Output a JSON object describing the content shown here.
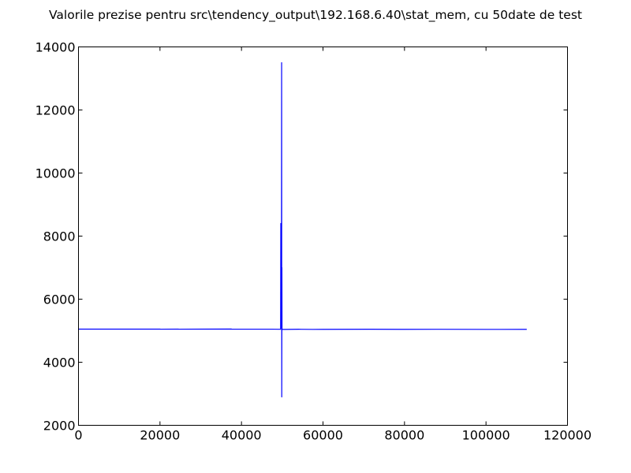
{
  "chart_data": {
    "type": "line",
    "title": "Valorile prezise pentru src\\tendency_output\\192.168.6.40\\stat_mem, cu 50date de test",
    "xlabel": "",
    "ylabel": "",
    "xlim": [
      0,
      120000
    ],
    "ylim": [
      2000,
      14000
    ],
    "x_ticks": [
      0,
      20000,
      40000,
      60000,
      80000,
      100000,
      120000
    ],
    "y_ticks": [
      2000,
      4000,
      6000,
      8000,
      10000,
      12000,
      14000
    ],
    "grid": false,
    "legend": "none",
    "series": [
      {
        "color": "#0000ff",
        "points": [
          [
            0,
            5050
          ],
          [
            10000,
            5050
          ],
          [
            20000,
            5052
          ],
          [
            20100,
            5048
          ],
          [
            24500,
            5052
          ],
          [
            24600,
            5049
          ],
          [
            37500,
            5053
          ],
          [
            37600,
            5049
          ],
          [
            47500,
            5048
          ],
          [
            49600,
            5045
          ],
          [
            49650,
            8400
          ],
          [
            49700,
            5100
          ],
          [
            49750,
            8300
          ],
          [
            49800,
            5100
          ],
          [
            49850,
            13500
          ],
          [
            49880,
            2900
          ],
          [
            49920,
            7000
          ],
          [
            49950,
            5050
          ],
          [
            50000,
            5040
          ],
          [
            54000,
            5046
          ],
          [
            57500,
            5042
          ],
          [
            60000,
            5044
          ],
          [
            71500,
            5046
          ],
          [
            80000,
            5043
          ],
          [
            88000,
            5045
          ],
          [
            100000,
            5042
          ],
          [
            110000,
            5044
          ]
        ]
      }
    ]
  }
}
